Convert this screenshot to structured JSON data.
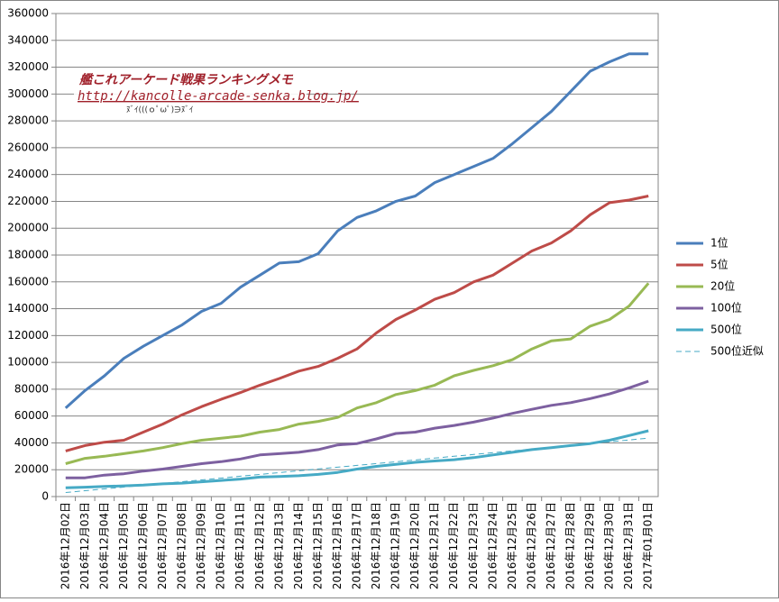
{
  "chart_data": {
    "type": "line",
    "categories": [
      "2016年12月02日",
      "2016年12月03日",
      "2016年12月04日",
      "2016年12月05日",
      "2016年12月06日",
      "2016年12月07日",
      "2016年12月08日",
      "2016年12月09日",
      "2016年12月10日",
      "2016年12月11日",
      "2016年12月12日",
      "2016年12月13日",
      "2016年12月14日",
      "2016年12月15日",
      "2016年12月16日",
      "2016年12月17日",
      "2016年12月18日",
      "2016年12月19日",
      "2016年12月20日",
      "2016年12月21日",
      "2016年12月22日",
      "2016年12月23日",
      "2016年12月24日",
      "2016年12月25日",
      "2016年12月26日",
      "2016年12月27日",
      "2016年12月28日",
      "2016年12月29日",
      "2016年12月30日",
      "2016年12月31日",
      "2017年01月01日"
    ],
    "series": [
      {
        "name": "1位",
        "color": "#4a7ebb",
        "values": [
          66000,
          79000,
          90000,
          103000,
          112000,
          120000,
          128000,
          138000,
          144000,
          156000,
          165000,
          174000,
          175000,
          181000,
          198000,
          208000,
          213000,
          220000,
          224000,
          234000,
          240000,
          246000,
          252000,
          263000,
          275000,
          287000,
          302000,
          317000,
          324000,
          330000,
          330000
        ]
      },
      {
        "name": "5位",
        "color": "#be4b48",
        "values": [
          34000,
          38000,
          40500,
          42000,
          48000,
          54000,
          61000,
          67000,
          72500,
          77500,
          83000,
          88000,
          93500,
          97000,
          103000,
          110000,
          122000,
          132000,
          139000,
          147000,
          152000,
          160000,
          165000,
          174000,
          183000,
          189000,
          198000,
          210000,
          219000,
          221000,
          224000
        ]
      },
      {
        "name": "20位",
        "color": "#98b954",
        "values": [
          24500,
          28500,
          30000,
          32000,
          34000,
          36500,
          39500,
          42000,
          43500,
          45000,
          48000,
          50000,
          54000,
          56000,
          59000,
          66000,
          70000,
          76000,
          79000,
          83000,
          90000,
          94000,
          97500,
          102000,
          110000,
          116000,
          117500,
          127000,
          132000,
          142000,
          159000
        ]
      },
      {
        "name": "100位",
        "color": "#7d60a0",
        "values": [
          14000,
          14000,
          16000,
          17000,
          19000,
          20500,
          22500,
          24500,
          26000,
          28000,
          31000,
          32000,
          33000,
          35000,
          38500,
          39500,
          43000,
          47000,
          48000,
          51000,
          53000,
          55500,
          58500,
          62000,
          65000,
          68000,
          70000,
          73000,
          76500,
          81000,
          86000
        ]
      },
      {
        "name": "500位",
        "color": "#46aac5",
        "values": [
          6500,
          7000,
          7500,
          8000,
          8500,
          9500,
          10000,
          11000,
          12000,
          13000,
          14500,
          15000,
          15500,
          16500,
          18000,
          20500,
          22500,
          24000,
          25500,
          26500,
          27500,
          29000,
          31000,
          33000,
          35000,
          36500,
          38000,
          39500,
          42000,
          45500,
          49000
        ]
      },
      {
        "name": "500位近似",
        "color": "#46aac5",
        "dashed": true,
        "values": [
          3000,
          4350,
          5700,
          7050,
          8400,
          9750,
          11100,
          12450,
          13800,
          15150,
          16500,
          17850,
          19200,
          20550,
          21900,
          23250,
          24600,
          25950,
          27300,
          28650,
          30000,
          31350,
          32700,
          34050,
          35400,
          36750,
          38100,
          39450,
          40800,
          42150,
          43500
        ]
      }
    ],
    "ylim": [
      0,
      360000
    ],
    "yticks": [
      0,
      20000,
      40000,
      60000,
      80000,
      100000,
      120000,
      140000,
      160000,
      180000,
      200000,
      220000,
      240000,
      260000,
      280000,
      300000,
      320000,
      340000,
      360000
    ],
    "grid": true,
    "legend": "right",
    "annotations": [
      "艦これアーケード戦果ランキングメモ",
      "http://kancolle-arcade-senka.blog.jp/",
      "ﾇﾞｲ(((ｏﾟωﾟ)∋ﾇﾞｲ"
    ]
  }
}
